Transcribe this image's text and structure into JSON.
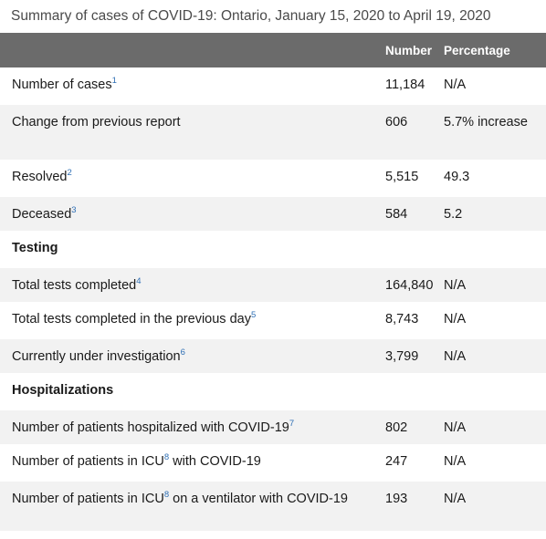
{
  "caption": "Summary of cases of COVID-19: Ontario, January 15, 2020 to April 19, 2020",
  "headers": {
    "label": "",
    "number": "Number",
    "percentage": "Percentage"
  },
  "rows": [
    {
      "label": "Number of cases",
      "note": "1",
      "number": "11,184",
      "percentage": "N/A"
    },
    {
      "label": "Change from previous report",
      "number": "606",
      "percentage": "5.7% increase"
    },
    {
      "label": "Resolved",
      "note": "2",
      "number": "5,515",
      "percentage": "49.3"
    },
    {
      "label": "Deceased",
      "note": "3",
      "number": "584",
      "percentage": "5.2"
    },
    {
      "label": "Testing"
    },
    {
      "label": "Total tests completed",
      "note": "4",
      "number": "164,840",
      "percentage": "N/A"
    },
    {
      "label": "Total tests completed in the previous day",
      "note": "5",
      "number": "8,743",
      "percentage": "N/A"
    },
    {
      "label": "Currently under investigation",
      "note": "6",
      "number": "3,799",
      "percentage": "N/A"
    },
    {
      "label": "Hospitalizations"
    },
    {
      "label": "Number of patients hospitalized with COVID-19",
      "note": "7",
      "number": "802",
      "percentage": "N/A"
    },
    {
      "label_before": "Number of patients in ICU",
      "note": "8",
      "label_after": " with COVID-19",
      "number": "247",
      "percentage": "N/A"
    },
    {
      "label_before": "Number of patients in ICU",
      "note": "8",
      "label_after": " on a ventilator with COVID-19",
      "number": "193",
      "percentage": "N/A"
    }
  ]
}
